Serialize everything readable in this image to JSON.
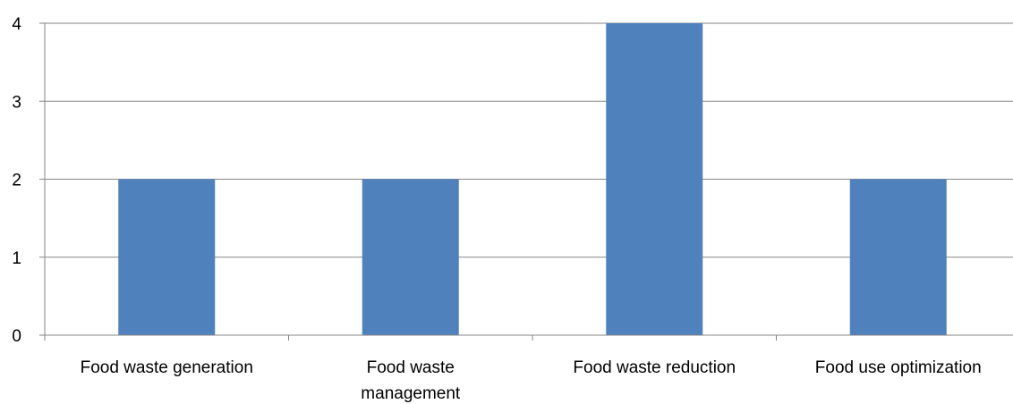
{
  "chart_data": {
    "type": "bar",
    "title": "",
    "xlabel": "",
    "ylabel": "",
    "categories": [
      [
        "Food waste generation"
      ],
      [
        "Food waste",
        "management"
      ],
      [
        "Food waste reduction"
      ],
      [
        "Food use optimization"
      ]
    ],
    "values": [
      2,
      2,
      4,
      2
    ],
    "ylim": [
      0,
      4
    ],
    "yticks": [
      "0",
      "1",
      "2",
      "3",
      "4"
    ],
    "grid": true,
    "legend": "none",
    "bar_color": "#4f81bd",
    "grid_color": "#868686",
    "axis_color": "#868686"
  }
}
